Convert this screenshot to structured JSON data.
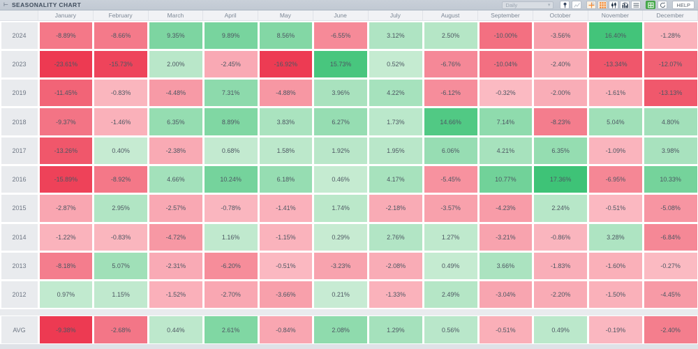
{
  "titlebar": {
    "collapse_icon": "⊢",
    "title": "SEASONALITY CHART",
    "timeframe_value": "Daily",
    "timeframe_chevron": "▾",
    "help_label": "HELP",
    "tool_icons": [
      "pin-icon",
      "trend-line-icon",
      "crosshair-chart-icon",
      "heatmap-grid-icon",
      "candlestick-chart-icon",
      "bar-chart-icon",
      "list-view-icon",
      "export-excel-icon",
      "refresh-icon"
    ]
  },
  "chart_data": {
    "type": "heatmap",
    "title": "SEASONALITY CHART",
    "value_format": "percent",
    "columns": [
      "January",
      "February",
      "March",
      "April",
      "May",
      "June",
      "July",
      "August",
      "September",
      "October",
      "November",
      "December"
    ],
    "rows": [
      {
        "label": "2024",
        "values": [
          -8.89,
          -8.66,
          9.35,
          9.89,
          8.56,
          -6.55,
          3.12,
          2.5,
          -10.0,
          -3.56,
          16.4,
          -1.28
        ]
      },
      {
        "label": "2023",
        "values": [
          -23.61,
          -15.73,
          2.0,
          -2.45,
          -16.92,
          15.73,
          0.52,
          -6.76,
          -10.04,
          -2.4,
          -13.34,
          -12.07
        ]
      },
      {
        "label": "2019",
        "values": [
          -11.45,
          -0.83,
          -4.48,
          7.31,
          -4.88,
          3.96,
          4.22,
          -6.12,
          -0.32,
          -2.0,
          -1.61,
          -13.13
        ]
      },
      {
        "label": "2018",
        "values": [
          -9.37,
          -1.46,
          6.35,
          8.89,
          3.83,
          6.27,
          1.73,
          14.66,
          7.14,
          -8.23,
          5.04,
          4.8
        ]
      },
      {
        "label": "2017",
        "values": [
          -13.26,
          0.4,
          -2.38,
          0.68,
          1.58,
          1.92,
          1.95,
          6.06,
          4.21,
          6.35,
          -1.09,
          3.98
        ]
      },
      {
        "label": "2016",
        "values": [
          -15.89,
          -8.92,
          4.66,
          10.24,
          6.18,
          0.46,
          4.17,
          -5.45,
          10.77,
          17.36,
          -6.95,
          10.33
        ]
      },
      {
        "label": "2015",
        "values": [
          -2.87,
          2.95,
          -2.57,
          -0.78,
          -1.41,
          1.74,
          -2.18,
          -3.57,
          -4.23,
          2.24,
          -0.51,
          -5.08
        ]
      },
      {
        "label": "2014",
        "values": [
          -1.22,
          -0.83,
          -4.72,
          1.16,
          -1.15,
          0.29,
          2.76,
          1.27,
          -3.21,
          -0.86,
          3.28,
          -6.84
        ]
      },
      {
        "label": "2013",
        "values": [
          -8.18,
          5.07,
          -2.31,
          -6.2,
          -0.51,
          -3.23,
          -2.08,
          0.49,
          3.66,
          -1.83,
          -1.6,
          -0.27
        ]
      },
      {
        "label": "2012",
        "values": [
          0.97,
          1.15,
          -1.52,
          -2.7,
          -3.66,
          0.21,
          -1.33,
          2.49,
          -3.04,
          -2.2,
          -1.5,
          -4.45
        ]
      }
    ],
    "avg_row": {
      "label": "AVG",
      "values": [
        -9.38,
        -2.68,
        0.44,
        2.61,
        -0.84,
        2.08,
        1.29,
        0.56,
        -0.51,
        0.49,
        -0.19,
        -2.4
      ]
    },
    "colors": {
      "negative_light": "#fbbcc4",
      "negative_strong": "#ed3a52",
      "positive_light": "#c9ecd4",
      "positive_strong": "#3ec377",
      "accent_orange": "#f08c3a"
    },
    "scale": {
      "year_max_abs": 17,
      "avg_max_abs": 5
    },
    "legend_position": "none",
    "grid": false
  }
}
